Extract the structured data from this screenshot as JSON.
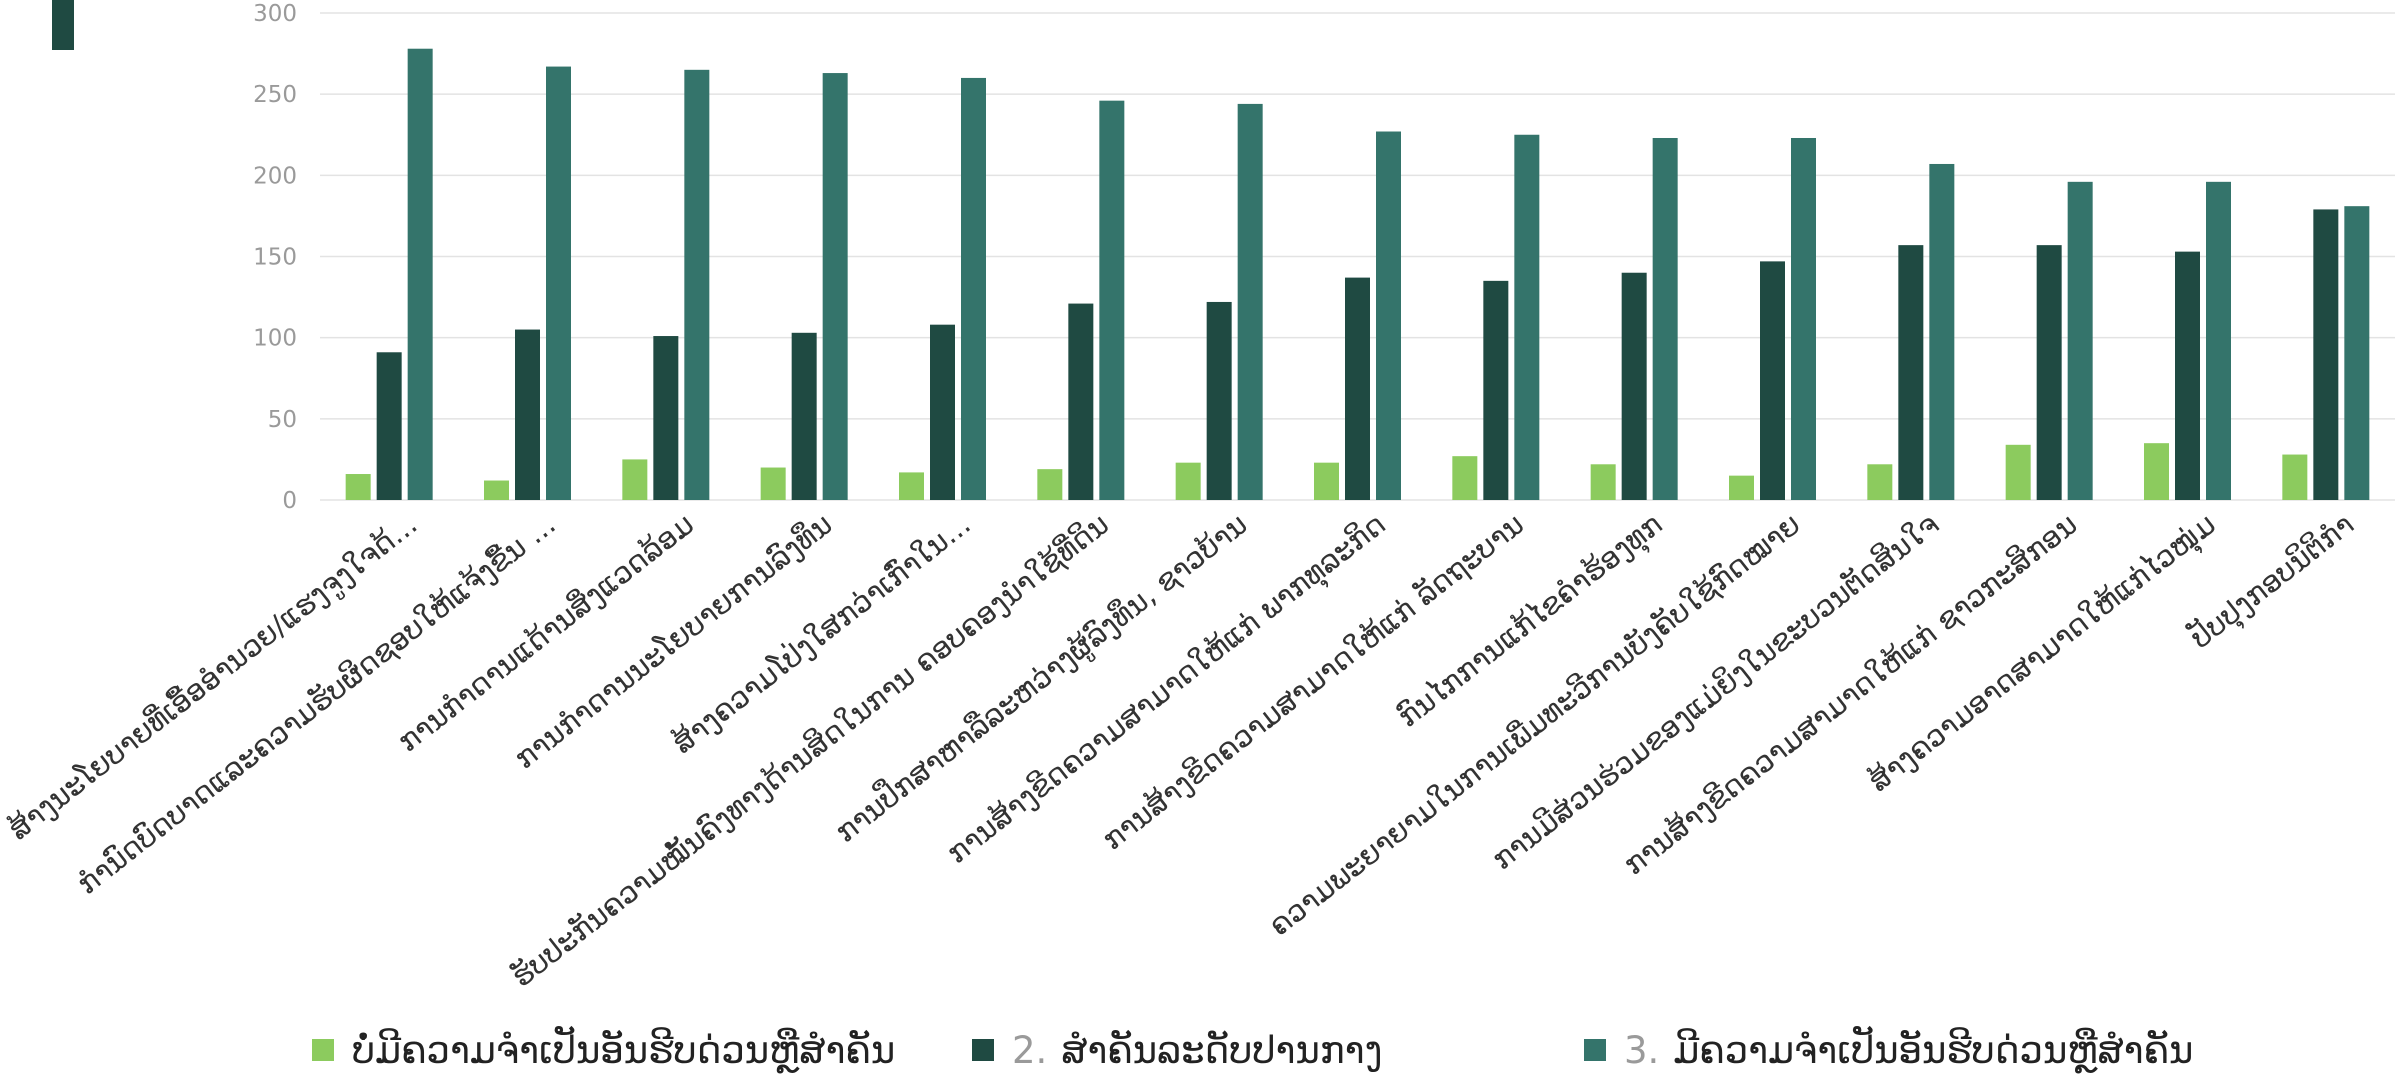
{
  "colors": {
    "s1": "#8ccb5e",
    "s2": "#1f4a42",
    "s3": "#34746b",
    "grid": "#e3e3e3",
    "tick": "#9a9a9a",
    "catlabel": "#333333"
  },
  "legend": [
    {
      "number": "",
      "label": "ບໍ່ມີຄວາມຈຳເປັນອັນຮີບດ່ວນຫຼືສຳຄັນ"
    },
    {
      "number": "2.",
      "label": "ສຳຄັນລະດັບປານກາງ"
    },
    {
      "number": "3.",
      "label": "ມີຄວາມຈຳເປັນອັນຮີບດ່ວນຫຼືສຳຄັນ"
    }
  ],
  "chart_data": {
    "type": "bar",
    "ylim": [
      0,
      300
    ],
    "yticks": [
      0,
      50,
      100,
      150,
      200,
      250,
      300
    ],
    "grid": true,
    "legend_position": "bottom",
    "categories": [
      "ສ້າງນະໂຍບາຍທີ່ເອື້ອອຳນວຍ/ແຮງຈູງໃຈດ້...",
      "ກຳນົດບົດບາດແລະຄວາມຮັບຜິດຊອບໃຫ້ແຈ້ງຂື້ນ ...",
      "ການກຳດານແດ້ານສິ່ງແວດລ້ອມ",
      "ການກຳດານນະໂຍບາຍການລົງທຶນ",
      "ສ້າງຄວາມໂປ່ງໃສກວ່າເກົ່າໃນ...",
      "ຮັບປະກັນຄວາມໝັ້ນຄົງທາງດ້ານສິດໃນການ ຄອບຄອງນຳໃຊ້ທີ່ດິນ",
      "ການປຶກສາຫາລືລະຫວ່າງຜູ້ລົງທຶນ, ຊາວບ້ານ",
      "ການສ້າງຂີດຄວາມສາມາດໃຫ້ແກ່ ພາກທຸລະກິດ",
      "ການສ້າງຂີດຄວາມສາມາດໃຫ້ແກ່ ລັດຖະບານ",
      "ກົນໄກການແກ້ໄຂຄຳຮ້ອງທຸກ",
      "ຄວາມພະຍາຍາມໃນການເພີ່ມທະວີການບັງຄັບໃຊ້ກົດໝາຍ",
      "ການມີສ່ວນຮ່ວມຂອງແມ່ຍິງໃນຂະບວນຕັດສິນໃຈ",
      "ການສ້າງຂີດຄວາມສາມາດໃຫ້ແກ່ ຊາວກະສິກອນ",
      "ສ້າງຄວາມອາດສາມາດໃຫ້ແກ່ໄວໜຸ່ມ",
      "ປັບປຸງກອບນິຕິກຳ"
    ],
    "series": [
      {
        "name": "ບໍ່ມີຄວາມຈຳເປັນອັນຮີບດ່ວນຫຼືສຳຄັນ",
        "values": [
          16,
          12,
          25,
          20,
          17,
          19,
          23,
          23,
          27,
          22,
          15,
          22,
          34,
          35,
          28
        ]
      },
      {
        "name": "2. ສຳຄັນລະດັບປານກາງ",
        "values": [
          91,
          105,
          101,
          103,
          108,
          121,
          122,
          137,
          135,
          140,
          147,
          157,
          157,
          153,
          179
        ]
      },
      {
        "name": "3. ມີຄວາມຈຳເປັນອັນຮີບດ່ວນຫຼືສຳຄັນ",
        "values": [
          278,
          267,
          265,
          263,
          260,
          246,
          244,
          227,
          225,
          223,
          223,
          207,
          196,
          196,
          181
        ]
      }
    ]
  }
}
